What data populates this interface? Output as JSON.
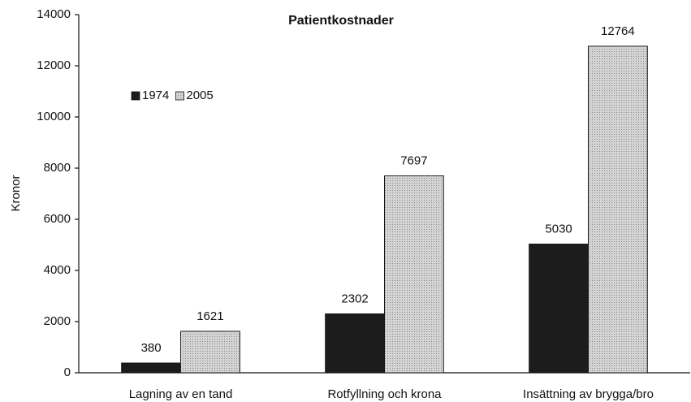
{
  "chart_data": {
    "type": "bar",
    "title": "Patientkostnader",
    "y_label": "Kronor",
    "categories": [
      "Lagning av en tand",
      "Rotfyllning och krona",
      "Insättning av brygga/bro"
    ],
    "series": [
      {
        "name": "1974",
        "color": "#1c1c1c",
        "values": [
          380,
          2302,
          5030
        ]
      },
      {
        "name": "2005",
        "color": "#d4d4d4",
        "values": [
          1621,
          7697,
          12764
        ]
      }
    ],
    "ylim": [
      0,
      14000
    ],
    "yticks": [
      0,
      2000,
      4000,
      6000,
      8000,
      10000,
      12000,
      14000
    ],
    "grid": false,
    "legend": "upper left",
    "value_labels_shown": true
  }
}
